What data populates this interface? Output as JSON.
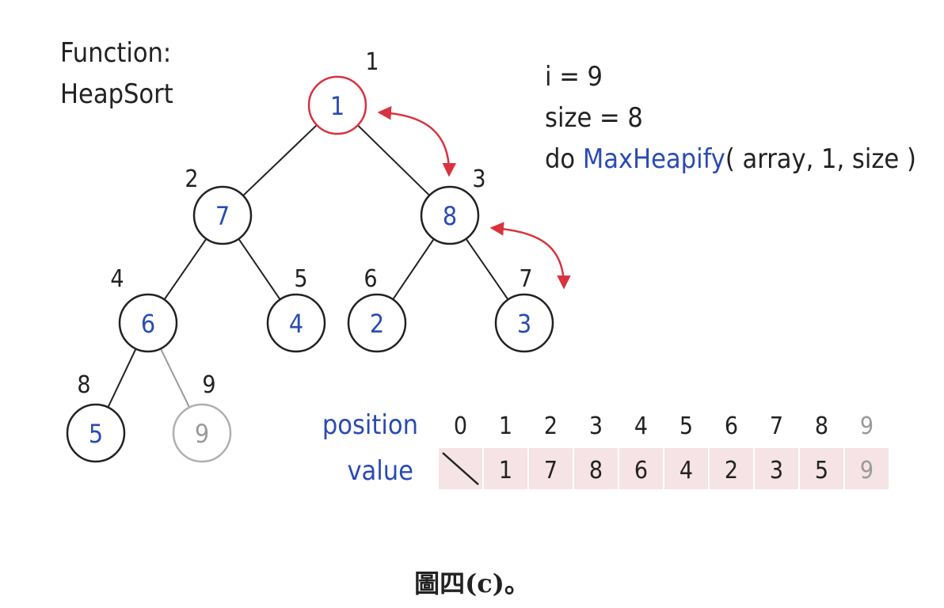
{
  "function_label": {
    "line1": "Function:",
    "line2": "HeapSort"
  },
  "status": {
    "i_line": "i = 9",
    "size_line": "size = 8",
    "call_prefix": "do ",
    "call_name": "MaxHeapify",
    "call_args": "( array, 1, size )"
  },
  "tree": {
    "nodes": [
      {
        "pos": "1",
        "value": "1",
        "state": "highlighted"
      },
      {
        "pos": "2",
        "value": "7",
        "state": "normal"
      },
      {
        "pos": "3",
        "value": "8",
        "state": "normal"
      },
      {
        "pos": "4",
        "value": "6",
        "state": "normal"
      },
      {
        "pos": "5",
        "value": "4",
        "state": "normal"
      },
      {
        "pos": "6",
        "value": "2",
        "state": "normal"
      },
      {
        "pos": "7",
        "value": "3",
        "state": "normal"
      },
      {
        "pos": "8",
        "value": "5",
        "state": "normal"
      },
      {
        "pos": "9",
        "value": "9",
        "state": "sorted"
      }
    ],
    "edges": [
      [
        "1",
        "2"
      ],
      [
        "1",
        "3"
      ],
      [
        "2",
        "4"
      ],
      [
        "2",
        "5"
      ],
      [
        "3",
        "6"
      ],
      [
        "3",
        "7"
      ],
      [
        "4",
        "8"
      ],
      [
        "4",
        "9"
      ]
    ],
    "swap_arrows": [
      [
        "1",
        "3"
      ],
      [
        "3",
        "7"
      ]
    ]
  },
  "table": {
    "position_label": "position",
    "value_label": "value",
    "positions": [
      "0",
      "1",
      "2",
      "3",
      "4",
      "5",
      "6",
      "7",
      "8",
      "9"
    ],
    "values": [
      "",
      "1",
      "7",
      "8",
      "6",
      "4",
      "2",
      "3",
      "5",
      "9"
    ],
    "sorted_from_index": 9
  },
  "colors": {
    "value_blue": "#2a4bb3",
    "highlight_red": "#d9323f",
    "sorted_gray": "#9a9a9a",
    "cell_pink": "#f5e3e6",
    "text_black": "#222222"
  },
  "caption": "圖四(c)。"
}
